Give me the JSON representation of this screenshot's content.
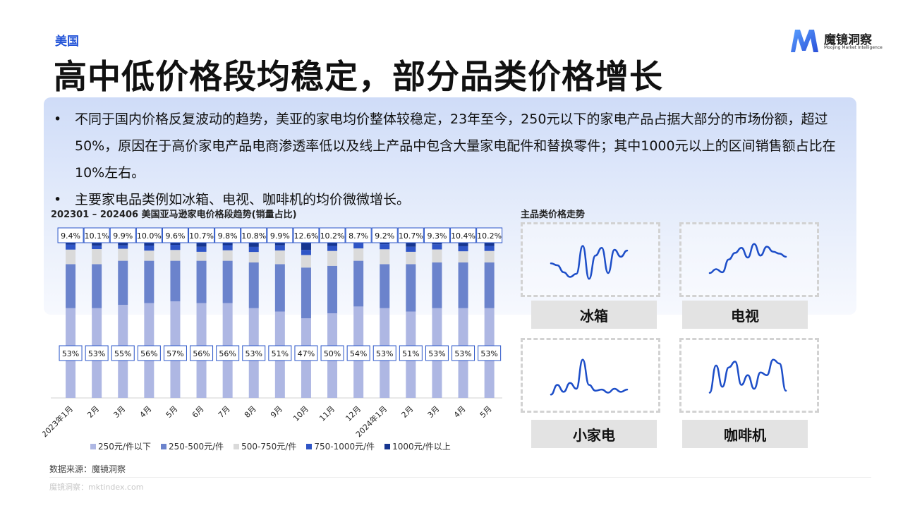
{
  "header": {
    "tag": "美国",
    "title": "高中低价格段均稳定，部分品类价格增长"
  },
  "logo": {
    "name": "魔镜洞察",
    "subtitle": "Moojing Market Intelligence"
  },
  "bullets": [
    "不同于国内价格反复波动的趋势，美亚的家电均价整体较稳定，23年至今，250元以下的家电产品占据大部分的市场份额，超过50%，原因在于高价家电产品电商渗透率低以及线上产品中包含大量家电配件和替换零件；其中1000元以上的区间销售额占比在10%左右。",
    "主要家电品类例如冰箱、电视、咖啡机的均价微微增长。"
  ],
  "bullet_marker": "•",
  "chart_data": {
    "type": "bar",
    "stacked": true,
    "title": "202301 – 202406 美国亚马逊家电价格段趋势(销量占比)",
    "categories": [
      "2023年1月",
      "2月",
      "3月",
      "4月",
      "5月",
      "6月",
      "7月",
      "8月",
      "9月",
      "10月",
      "11月",
      "12月",
      "2024年1月",
      "2月",
      "3月",
      "4月",
      "5月"
    ],
    "ylim": [
      0,
      100
    ],
    "series": [
      {
        "name": "250元/件以下",
        "color": "#aeb7e3",
        "values": [
          53,
          53,
          55,
          56,
          57,
          56,
          56,
          53,
          51,
          47,
          50,
          54,
          53,
          51,
          53,
          53,
          53
        ],
        "labels": [
          "53%",
          "53%",
          "55%",
          "56%",
          "57%",
          "56%",
          "56%",
          "53%",
          "51%",
          "47%",
          "50%",
          "54%",
          "53%",
          "51%",
          "53%",
          "53%",
          "53%"
        ]
      },
      {
        "name": "250-500元/件",
        "color": "#6b83cc",
        "values": [
          26,
          26,
          26,
          25,
          24,
          25,
          25,
          27,
          28,
          30,
          28,
          27,
          26,
          28,
          27,
          27,
          27
        ]
      },
      {
        "name": "500-750元/件",
        "color": "#dadada",
        "values": [
          8.6,
          8.9,
          7.1,
          6.0,
          6.4,
          5.3,
          6.2,
          6.2,
          8.1,
          7.4,
          8.8,
          7.3,
          8.8,
          7.3,
          7.7,
          6.6,
          6.8
        ]
      },
      {
        "name": "750-1000元/件",
        "color": "#2f55c6",
        "values": [
          3,
          2,
          2,
          3,
          3,
          3,
          3,
          3,
          3,
          3,
          3,
          3,
          3,
          3,
          3,
          3,
          3
        ]
      },
      {
        "name": "1000元/件以上",
        "color": "#16358f",
        "values": [
          9.4,
          10.1,
          9.9,
          10.0,
          9.6,
          10.7,
          9.8,
          10.8,
          9.9,
          12.6,
          10.2,
          8.7,
          9.2,
          10.7,
          9.3,
          10.4,
          10.2
        ],
        "labels": [
          "9.4%",
          "10.1%",
          "9.9%",
          "10.0%",
          "9.6%",
          "10.7%",
          "9.8%",
          "10.8%",
          "9.9%",
          "12.6%",
          "10.2%",
          "8.7%",
          "9.2%",
          "10.7%",
          "9.3%",
          "10.4%",
          "10.2%"
        ]
      }
    ],
    "legend_position": "bottom",
    "grid": false
  },
  "trend_panel": {
    "title": "主品类价格走势",
    "items": [
      {
        "label": "冰箱",
        "color": "#1d4ec8",
        "values": [
          0.45,
          0.4,
          0.22,
          0.1,
          0.18,
          0.9,
          0.05,
          0.65,
          0.85,
          0.2,
          0.8,
          0.62,
          0.78
        ]
      },
      {
        "label": "电视",
        "color": "#1d4ec8",
        "values": [
          0.2,
          0.3,
          0.22,
          0.55,
          0.72,
          0.85,
          0.6,
          0.95,
          0.65,
          0.88,
          0.75,
          0.7,
          0.62
        ]
      },
      {
        "label": "小家电",
        "color": "#1d4ec8",
        "values": [
          0.05,
          0.3,
          0.12,
          0.35,
          0.2,
          0.95,
          0.3,
          0.15,
          0.18,
          0.1,
          0.2,
          0.12,
          0.18
        ]
      },
      {
        "label": "咖啡机",
        "color": "#1d4ec8",
        "values": [
          0.1,
          0.8,
          0.25,
          0.75,
          0.9,
          0.3,
          0.55,
          0.2,
          0.62,
          0.55,
          0.95,
          0.85,
          0.15
        ]
      }
    ]
  },
  "source": "数据来源：魔镜洞察",
  "footer": "魔镜洞察：mktindex.com"
}
